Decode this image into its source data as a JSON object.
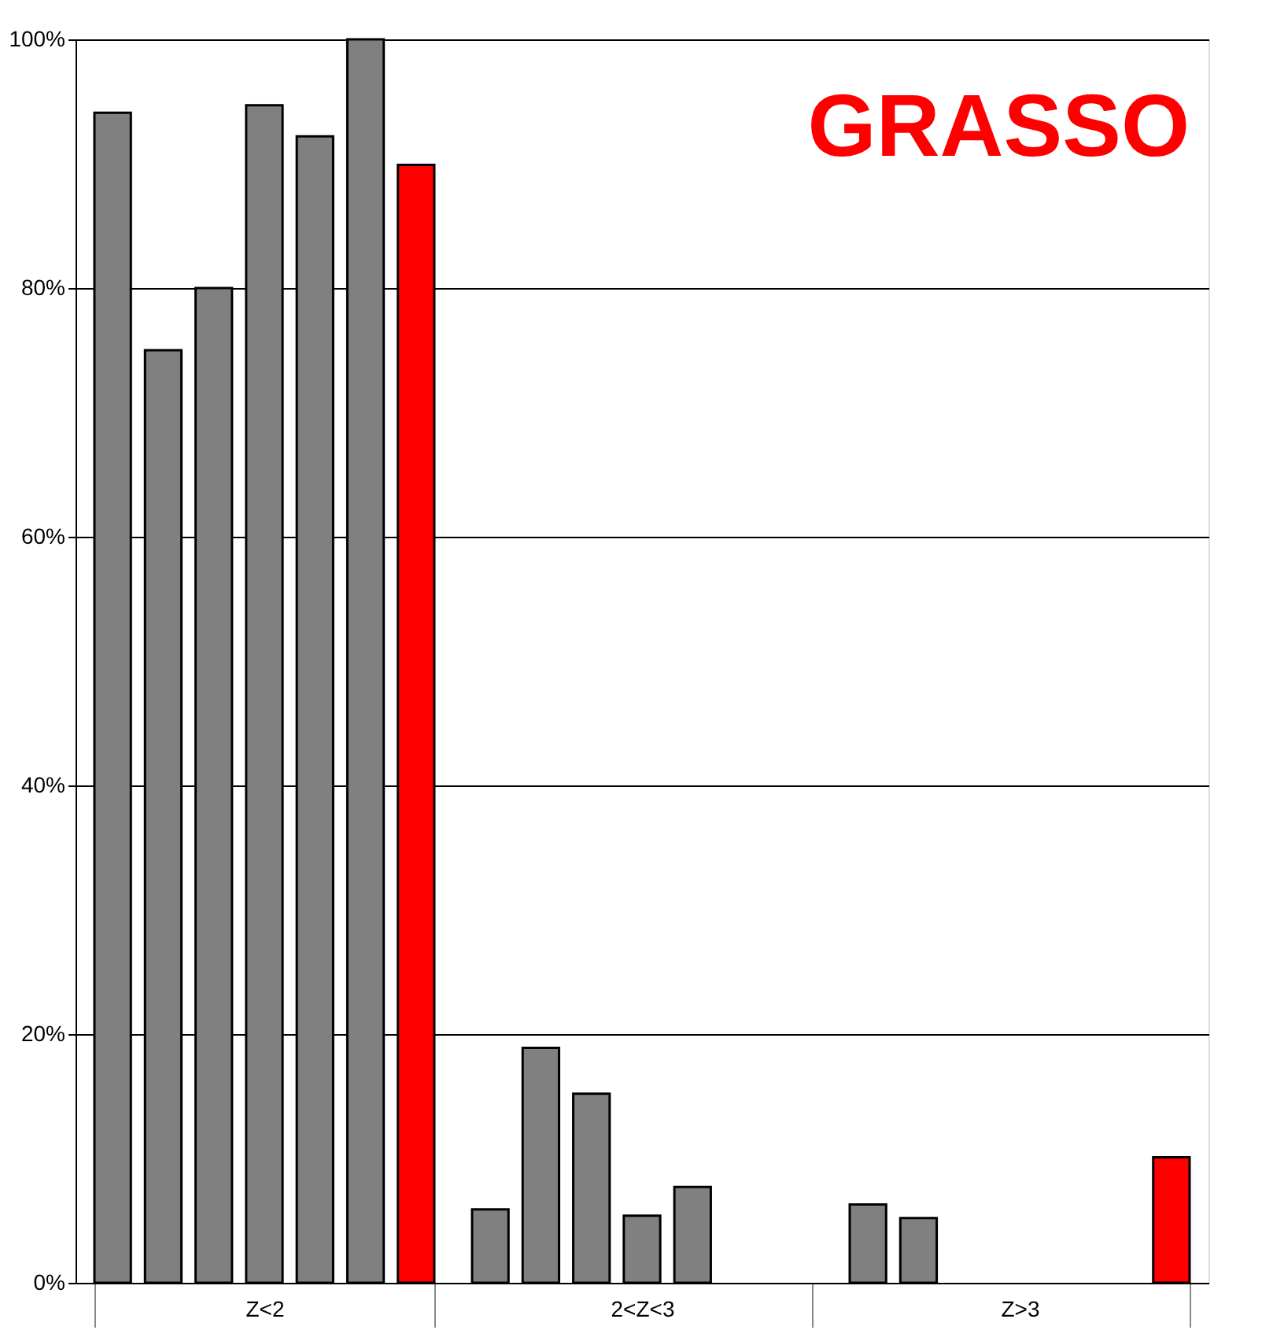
{
  "chart_data": {
    "type": "bar",
    "title": "GRASSO",
    "categories": [
      "Z<2",
      "2<Z<3",
      "Z>3"
    ],
    "series": [
      {
        "color": "#808080",
        "values": [
          94.1,
          5.9,
          6.3
        ]
      },
      {
        "color": "#808080",
        "values": [
          75.0,
          18.9,
          5.2
        ]
      },
      {
        "color": "#808080",
        "values": [
          80.0,
          15.2,
          0
        ]
      },
      {
        "color": "#808080",
        "values": [
          94.7,
          5.4,
          0
        ]
      },
      {
        "color": "#808080",
        "values": [
          92.2,
          7.7,
          0
        ]
      },
      {
        "color": "#808080",
        "values": [
          100,
          0,
          0
        ]
      },
      {
        "color": "#ff0000",
        "values": [
          89.9,
          0,
          10.1
        ]
      }
    ],
    "ylim": [
      0,
      100
    ],
    "yticks": [
      {
        "value": 0,
        "label": "0%"
      },
      {
        "value": 20,
        "label": "20%"
      },
      {
        "value": 40,
        "label": "40%"
      },
      {
        "value": 60,
        "label": "60%"
      },
      {
        "value": 80,
        "label": "80%"
      },
      {
        "value": 100,
        "label": "100%"
      }
    ],
    "grid": "y",
    "legend": false
  }
}
